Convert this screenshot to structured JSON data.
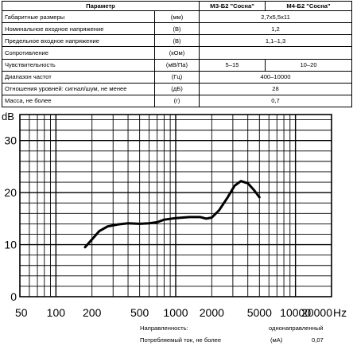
{
  "table": {
    "headers": {
      "param": "Параметр",
      "col1": "МЗ-Б2 \"Сосна\"",
      "col2": "М4-Б2 \"Сосна\""
    },
    "rows": [
      {
        "name": "Габаритные размеры",
        "unit": "(мм)",
        "value": "2,7х5,5х11"
      },
      {
        "name": "Номинальное входное напряжение",
        "unit": "(В)",
        "value": "1,2"
      },
      {
        "name": "Предельное входное напряжение",
        "unit": "(В)",
        "value": "1,1–1,3"
      },
      {
        "name": "Сопротивление",
        "unit": "(кОм)",
        "value": ""
      },
      {
        "name": "Чувствительность",
        "unit": "(мВ/Па)",
        "value1": "5–15",
        "value2": "10–20"
      },
      {
        "name": "Диапазон частот",
        "unit": "(Гц)",
        "value": "400–10000"
      },
      {
        "name": "Отношения уровней: сигнал/шум, не менее",
        "unit": "(дБ)",
        "value": "28"
      },
      {
        "name": "Масса, не более",
        "unit": "(г)",
        "value": "0,7"
      }
    ]
  },
  "chart_data": {
    "type": "line",
    "title": "",
    "xlabel": "Hz",
    "ylabel": "dB",
    "x_scale": "log",
    "xlim": [
      50,
      20000
    ],
    "ylim": [
      0,
      35
    ],
    "grid": true,
    "x_ticks": [
      "50",
      "100",
      "200",
      "500",
      "1000",
      "2000",
      "5000",
      "10000",
      "20000"
    ],
    "x_tick_labels": [
      "50",
      "100",
      "200",
      "500",
      "1000",
      "2000",
      "5000",
      "10000",
      "20000"
    ],
    "x_unit_label": "Hz",
    "y_ticks": [
      0,
      10,
      20,
      30
    ],
    "y_tick_labels": [
      "0",
      "10",
      "20",
      "30"
    ],
    "series": [
      {
        "color": "#000000",
        "x": [
          175,
          200,
          230,
          270,
          330,
          400,
          500,
          600,
          700,
          800,
          1000,
          1300,
          1600,
          1800,
          2000,
          2300,
          2700,
          3100,
          3500,
          4000,
          4500,
          5000
        ],
        "y": [
          9.5,
          11.0,
          12.6,
          13.5,
          13.9,
          14.1,
          14.0,
          14.1,
          14.3,
          14.8,
          15.1,
          15.3,
          15.3,
          15.0,
          15.2,
          16.6,
          19.0,
          21.3,
          22.2,
          21.8,
          20.5,
          19.1
        ]
      }
    ]
  },
  "footer": {
    "directivity_label": "Направленность:",
    "directivity_value": "однонаправленный",
    "current_label": "Потребляемый ток, не более",
    "current_unit": "(мА)",
    "current_value": "0,07"
  }
}
